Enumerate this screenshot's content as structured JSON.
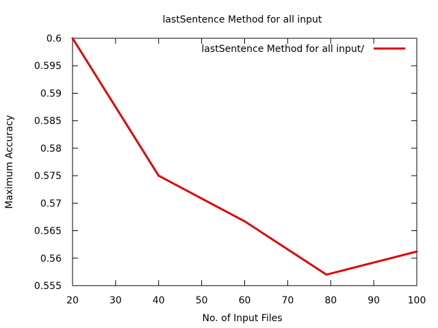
{
  "chart_data": {
    "type": "line",
    "title": "lastSentence Method for all input",
    "xlabel": "No. of Input Files",
    "ylabel": "Maximum Accuracy",
    "xlim": [
      20,
      100
    ],
    "ylim": [
      0.555,
      0.6
    ],
    "x_ticks": [
      "20",
      "30",
      "40",
      "50",
      "60",
      "70",
      "80",
      "90",
      "100"
    ],
    "y_ticks": [
      "0.555",
      "0.56",
      "0.565",
      "0.57",
      "0.575",
      "0.58",
      "0.585",
      "0.59",
      "0.595",
      "0.6"
    ],
    "grid": false,
    "legend_position": "top-right",
    "series": [
      {
        "name": "lastSentence Method for all input/",
        "color": "#e00000",
        "x": [
          20,
          40,
          60,
          79,
          100
        ],
        "y": [
          0.6,
          0.575,
          0.5667,
          0.557,
          0.5612
        ]
      }
    ]
  }
}
